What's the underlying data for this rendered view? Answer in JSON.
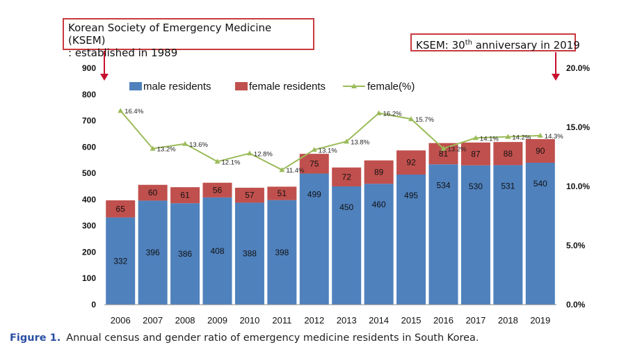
{
  "chart_data": {
    "type": "bar",
    "stacked": true,
    "categories": [
      "2006",
      "2007",
      "2008",
      "2009",
      "2010",
      "2011",
      "2012",
      "2013",
      "2014",
      "2015",
      "2016",
      "2017",
      "2018",
      "2019"
    ],
    "series": [
      {
        "name": "male residents",
        "color": "#4f81bd",
        "values": [
          332,
          396,
          386,
          408,
          388,
          398,
          499,
          450,
          460,
          495,
          534,
          530,
          531,
          540
        ]
      },
      {
        "name": "female residents",
        "color": "#c0504d",
        "values": [
          65,
          60,
          61,
          56,
          57,
          51,
          75,
          72,
          89,
          92,
          81,
          87,
          88,
          90
        ]
      }
    ],
    "line_series": {
      "name": "female(%)",
      "color": "#9bbb59",
      "axis": "right",
      "values": [
        16.4,
        13.2,
        13.6,
        12.1,
        12.8,
        11.4,
        13.1,
        13.8,
        16.2,
        15.7,
        13.2,
        14.1,
        14.2,
        14.3
      ],
      "labels": [
        "16.4%",
        "13.2%",
        "13.6%",
        "12.1%",
        "12.8%",
        "11.4%",
        "13.1%",
        "13.8%",
        "16.2%",
        "15.7%",
        "13.2%",
        "14.1%",
        "14.2%",
        "14.3%"
      ]
    },
    "ylim": [
      0,
      900
    ],
    "y_ticks": [
      "0",
      "100",
      "200",
      "300",
      "400",
      "500",
      "600",
      "700",
      "800",
      "900"
    ],
    "y2lim": [
      0,
      20
    ],
    "y2_ticks": [
      "0.0%",
      "5.0%",
      "10.0%",
      "15.0%",
      "20.0%"
    ],
    "legend_placement": "top-left",
    "grid": false
  },
  "annotations": {
    "left_line1": "Korean Society of Emergency Medicine (KSEM)",
    "left_line2": ": established in 1989",
    "right_prefix": "KSEM: 30",
    "right_sup": "th",
    "right_suffix": " anniversary in 2019",
    "arrow_color": "#c8102e"
  },
  "caption": {
    "label": "Figure 1.",
    "text": "Annual census and gender ratio of emergency medicine residents in South Korea."
  }
}
